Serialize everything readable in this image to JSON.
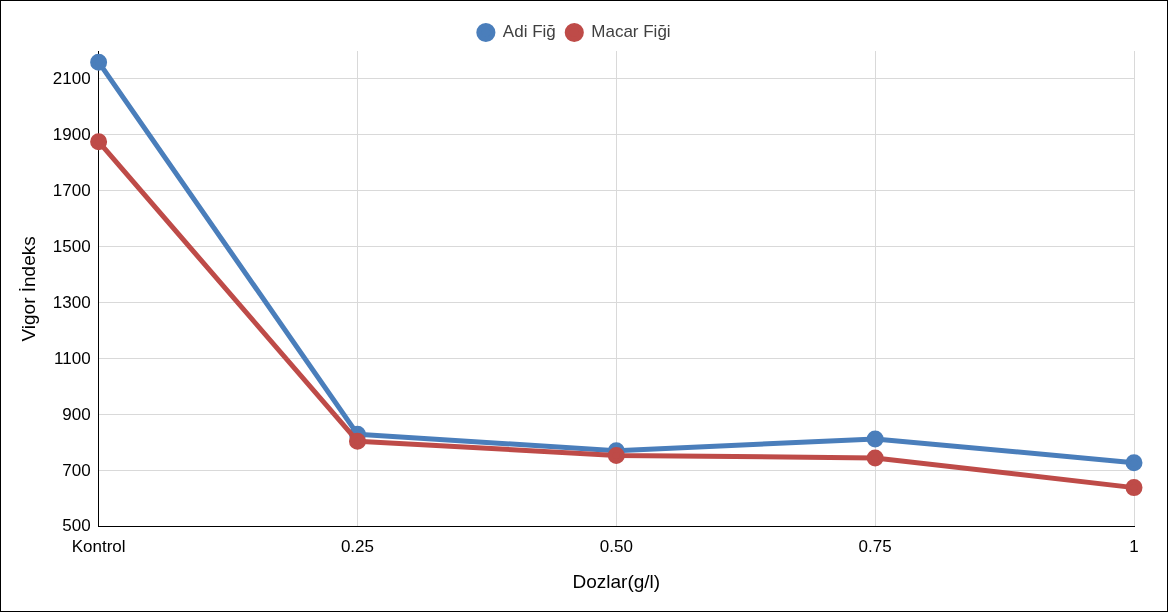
{
  "chart_data": {
    "type": "line",
    "xlabel": "Dozlar(g/l)",
    "ylabel": "Vigor İndeks",
    "categories": [
      "Kontrol",
      "0.25",
      "0.50",
      "0.75",
      "1"
    ],
    "series": [
      {
        "name": "Adi Fiğ",
        "color": "#4a7ebb",
        "values": [
          2160,
          831,
          772,
          814,
          729
        ]
      },
      {
        "name": "Macar Fiği",
        "color": "#be4b48",
        "values": [
          1876,
          806,
          755,
          746,
          640
        ]
      }
    ],
    "ylim": [
      500,
      2200
    ],
    "yticks": [
      500,
      700,
      900,
      1100,
      1300,
      1500,
      1700,
      1900,
      2100
    ],
    "grid": true,
    "legend": "top",
    "marker": "circle",
    "line_style": "solid"
  }
}
